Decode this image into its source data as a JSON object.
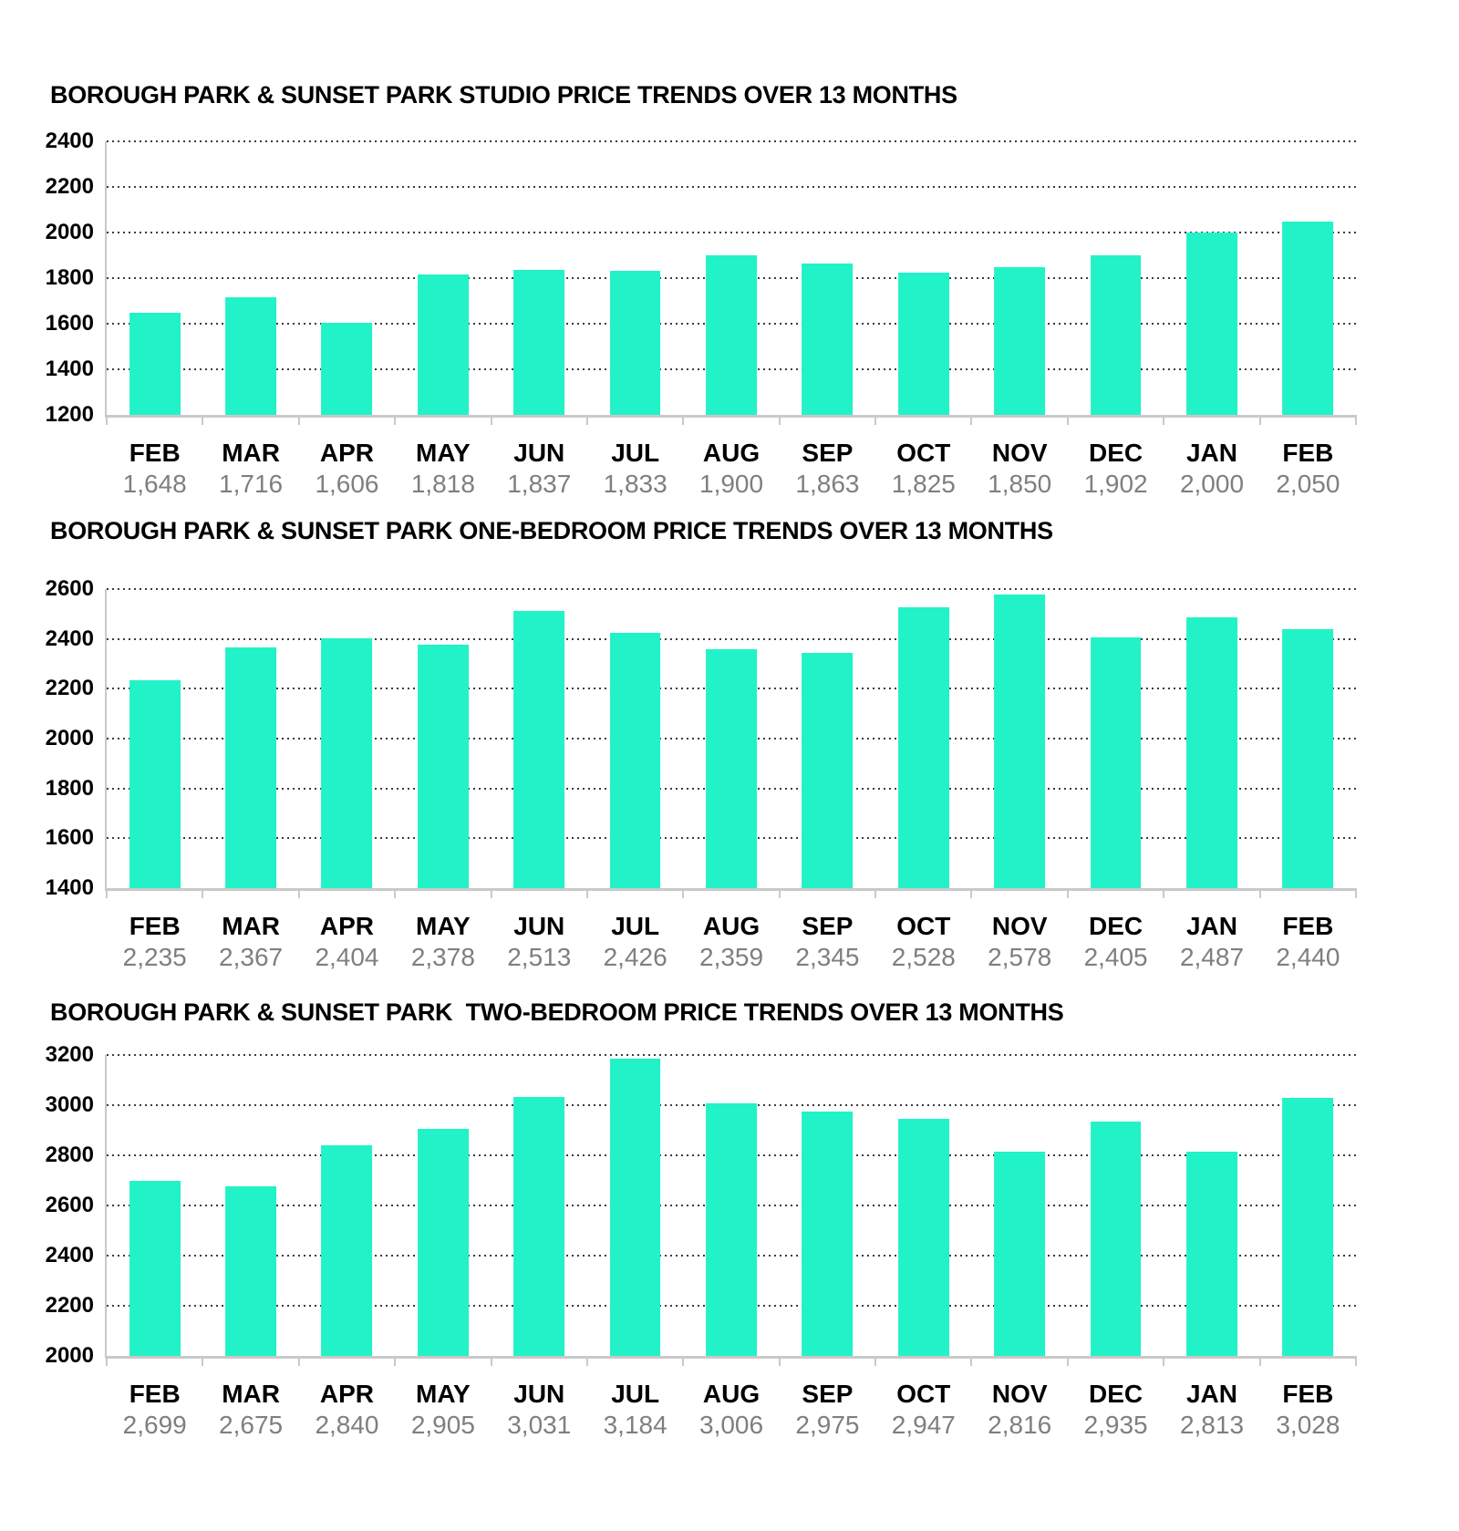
{
  "colors": {
    "bar": "#22F2C8",
    "title_text": "#000000",
    "ytick_text": "#000000",
    "month_text": "#000000",
    "value_text": "#7F7F7F",
    "axis_line": "#C9C9C9",
    "gridline": "#3C3C3C",
    "background": "#FFFFFF"
  },
  "chart_data": [
    {
      "type": "bar",
      "title": "BOROUGH PARK & SUNSET PARK STUDIO PRICE TRENDS OVER 13 MONTHS",
      "categories": [
        "FEB",
        "MAR",
        "APR",
        "MAY",
        "JUN",
        "JUL",
        "AUG",
        "SEP",
        "OCT",
        "NOV",
        "DEC",
        "JAN",
        "FEB"
      ],
      "values": [
        1648,
        1716,
        1606,
        1818,
        1837,
        1833,
        1900,
        1863,
        1825,
        1850,
        1902,
        2000,
        2050
      ],
      "value_labels": [
        "1,648",
        "1,716",
        "1,606",
        "1,818",
        "1,837",
        "1,833",
        "1,900",
        "1,863",
        "1,825",
        "1,850",
        "1,902",
        "2,000",
        "2,050"
      ],
      "xlabel": "",
      "ylabel": "",
      "ylim": [
        1200,
        2400
      ],
      "yticks": [
        1200,
        1400,
        1600,
        1800,
        2000,
        2200,
        2400
      ],
      "grid": "horizontal-dotted",
      "legend": "none"
    },
    {
      "type": "bar",
      "title": "BOROUGH PARK & SUNSET PARK ONE-BEDROOM PRICE TRENDS OVER 13 MONTHS",
      "categories": [
        "FEB",
        "MAR",
        "APR",
        "MAY",
        "JUN",
        "JUL",
        "AUG",
        "SEP",
        "OCT",
        "NOV",
        "DEC",
        "JAN",
        "FEB"
      ],
      "values": [
        2235,
        2367,
        2404,
        2378,
        2513,
        2426,
        2359,
        2345,
        2528,
        2578,
        2405,
        2487,
        2440
      ],
      "value_labels": [
        "2,235",
        "2,367",
        "2,404",
        "2,378",
        "2,513",
        "2,426",
        "2,359",
        "2,345",
        "2,528",
        "2,578",
        "2,405",
        "2,487",
        "2,440"
      ],
      "xlabel": "",
      "ylabel": "",
      "ylim": [
        1400,
        2600
      ],
      "yticks": [
        1400,
        1600,
        1800,
        2000,
        2200,
        2400,
        2600
      ],
      "grid": "horizontal-dotted",
      "legend": "none"
    },
    {
      "type": "bar",
      "title": "BOROUGH PARK & SUNSET PARK  TWO-BEDROOM PRICE TRENDS OVER 13 MONTHS",
      "categories": [
        "FEB",
        "MAR",
        "APR",
        "MAY",
        "JUN",
        "JUL",
        "AUG",
        "SEP",
        "OCT",
        "NOV",
        "DEC",
        "JAN",
        "FEB"
      ],
      "values": [
        2699,
        2675,
        2840,
        2905,
        3031,
        3184,
        3006,
        2975,
        2947,
        2816,
        2935,
        2813,
        3028
      ],
      "value_labels": [
        "2,699",
        "2,675",
        "2,840",
        "2,905",
        "3,031",
        "3,184",
        "3,006",
        "2,975",
        "2,947",
        "2,816",
        "2,935",
        "2,813",
        "3,028"
      ],
      "xlabel": "",
      "ylabel": "",
      "ylim": [
        2000,
        3200
      ],
      "yticks": [
        2000,
        2200,
        2400,
        2600,
        2800,
        3000,
        3200
      ],
      "grid": "horizontal-dotted",
      "legend": "none"
    }
  ]
}
